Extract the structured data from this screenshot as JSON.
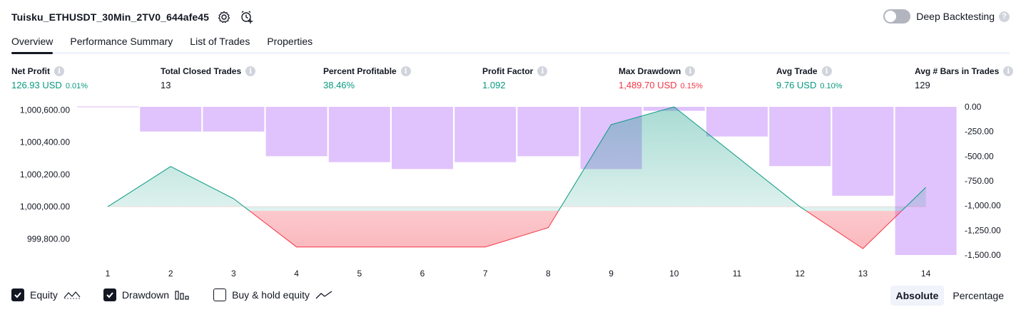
{
  "header": {
    "strategy_name": "Tuisku_ETHUSDT_30Min_2TV0_644afe45",
    "icons": [
      "settings-icon",
      "add-alert-icon"
    ],
    "deep_backtesting_label": "Deep Backtesting",
    "deep_backtesting_enabled": false
  },
  "tabs": [
    {
      "label": "Overview",
      "active": true
    },
    {
      "label": "Performance Summary",
      "active": false
    },
    {
      "label": "List of Trades",
      "active": false
    },
    {
      "label": "Properties",
      "active": false
    }
  ],
  "metrics": [
    {
      "label": "Net Profit",
      "value": "126.93 USD",
      "pct": "0.01%",
      "color": "#089981"
    },
    {
      "label": "Total Closed Trades",
      "value": "13",
      "pct": "",
      "color": "#131722"
    },
    {
      "label": "Percent Profitable",
      "value": "38.46%",
      "pct": "",
      "color": "#089981"
    },
    {
      "label": "Profit Factor",
      "value": "1.092",
      "pct": "",
      "color": "#089981"
    },
    {
      "label": "Max Drawdown",
      "value": "1,489.70 USD",
      "pct": "0.15%",
      "color": "#f23645"
    },
    {
      "label": "Avg Trade",
      "value": "9.76 USD",
      "pct": "0.10%",
      "color": "#089981"
    },
    {
      "label": "Avg # Bars in Trades",
      "value": "129",
      "pct": "",
      "color": "#131722"
    }
  ],
  "chart_data": {
    "type": "line",
    "x": [
      1,
      2,
      3,
      4,
      5,
      6,
      7,
      8,
      9,
      10,
      11,
      12,
      13,
      14
    ],
    "series": [
      {
        "name": "Equity",
        "values": [
          1000000,
          1000250,
          1000050,
          999750,
          999750,
          999750,
          999750,
          999870,
          1000510,
          1000620,
          null,
          1000000,
          999740,
          1000120
        ],
        "color": "#089981",
        "negative_color": "#f23645"
      },
      {
        "name": "Drawdown",
        "type": "bar",
        "values": [
          0,
          -250,
          -250,
          -500,
          -560,
          -630,
          -560,
          -500,
          -630,
          -40,
          -300,
          -600,
          -900,
          -1500
        ],
        "color": "#dbb8fb"
      }
    ],
    "left_axis": {
      "ticks": [
        "1,000,600.00",
        "1,000,400.00",
        "1,000,200.00",
        "1,000,000.00",
        "999,800.00"
      ],
      "range": [
        999700,
        1000620
      ]
    },
    "right_axis": {
      "ticks": [
        "0.00",
        "-250.00",
        "-500.00",
        "-750.00",
        "-1,000.00",
        "-1,250.00",
        "-1,500.00"
      ],
      "range": [
        -1500,
        0
      ]
    },
    "baseline": 1000000
  },
  "legend": [
    {
      "label": "Equity",
      "checked": true,
      "icon": "equity-line-icon"
    },
    {
      "label": "Drawdown",
      "checked": true,
      "icon": "drawdown-bars-icon"
    },
    {
      "label": "Buy & hold equity",
      "checked": false,
      "icon": "buy-hold-line-icon"
    }
  ],
  "mode": {
    "options": [
      "Absolute",
      "Percentage"
    ],
    "selected": "Absolute"
  }
}
